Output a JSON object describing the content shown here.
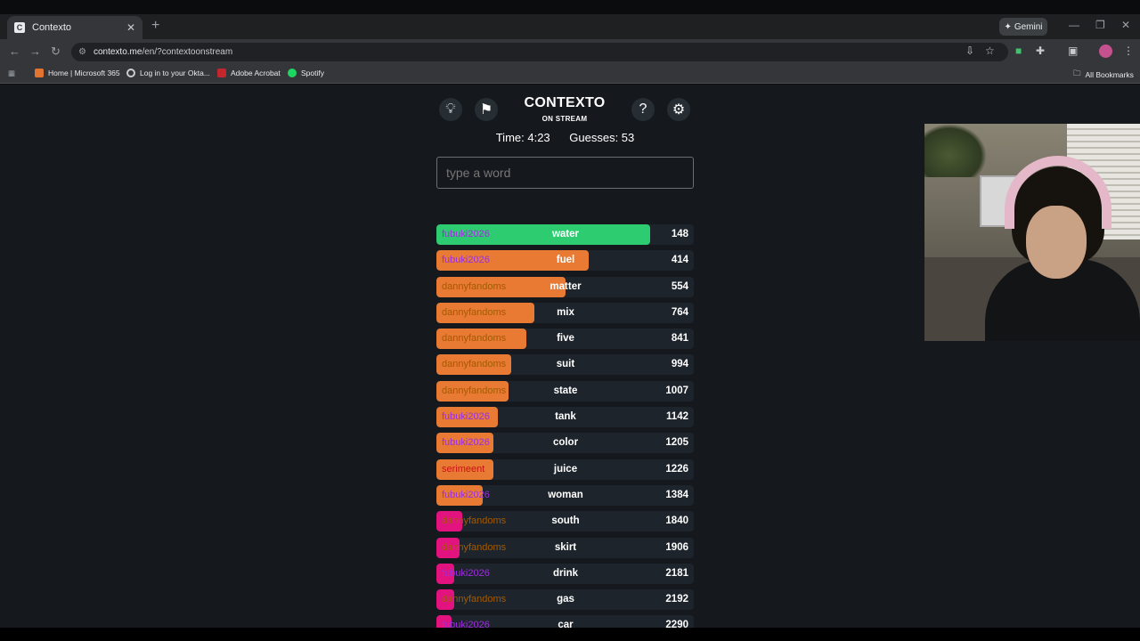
{
  "browser": {
    "tab_title": "Contexto",
    "tab_favicon": "C",
    "new_tab": "+",
    "gemini_label": "Gemini",
    "url_host": "contexto.me",
    "url_path": "/en/?contextoonstream",
    "bookmarks": [
      {
        "label": "Home | Microsoft 365",
        "color": "#e3742f"
      },
      {
        "label": "Log in to your Okta...",
        "color": "#3c4043"
      },
      {
        "label": "Adobe Acrobat",
        "color": "#c3262c"
      },
      {
        "label": "Spotify",
        "color": "#1ed760"
      }
    ],
    "all_bookmarks": "All Bookmarks"
  },
  "game": {
    "title": "CONTEXTO",
    "subtitle": "ON STREAM",
    "time_label": "Time: 4:23",
    "guesses_label": "Guesses: 53",
    "input_placeholder": "type a word",
    "colors": {
      "green": "#2ecc71",
      "orange": "#e87a33",
      "pink": "#e2127e",
      "row_bg": "#1d242b"
    },
    "guesses": [
      {
        "user": "fubuki2026",
        "word": "water",
        "distance": 148,
        "band": "green",
        "fill_pct": 83
      },
      {
        "user": "fubuki2026",
        "word": "fuel",
        "distance": 414,
        "band": "orange",
        "fill_pct": 59
      },
      {
        "user": "dannyfandoms",
        "word": "matter",
        "distance": 554,
        "band": "orange",
        "fill_pct": 50
      },
      {
        "user": "dannyfandoms",
        "word": "mix",
        "distance": 764,
        "band": "orange",
        "fill_pct": 38
      },
      {
        "user": "dannyfandoms",
        "word": "five",
        "distance": 841,
        "band": "orange",
        "fill_pct": 35
      },
      {
        "user": "dannyfandoms",
        "word": "suit",
        "distance": 994,
        "band": "orange",
        "fill_pct": 29
      },
      {
        "user": "dannyfandoms",
        "word": "state",
        "distance": 1007,
        "band": "orange",
        "fill_pct": 28
      },
      {
        "user": "fubuki2026",
        "word": "tank",
        "distance": 1142,
        "band": "orange",
        "fill_pct": 24
      },
      {
        "user": "fubuki2026",
        "word": "color",
        "distance": 1205,
        "band": "orange",
        "fill_pct": 22
      },
      {
        "user": "serimeent",
        "word": "juice",
        "distance": 1226,
        "band": "orange",
        "fill_pct": 22
      },
      {
        "user": "fubuki2026",
        "word": "woman",
        "distance": 1384,
        "band": "orange",
        "fill_pct": 18
      },
      {
        "user": "dannyfandoms",
        "word": "south",
        "distance": 1840,
        "band": "pink",
        "fill_pct": 10
      },
      {
        "user": "dannyfandoms",
        "word": "skirt",
        "distance": 1906,
        "band": "pink",
        "fill_pct": 9
      },
      {
        "user": "fubuki2026",
        "word": "drink",
        "distance": 2181,
        "band": "pink",
        "fill_pct": 7
      },
      {
        "user": "dannyfandoms",
        "word": "gas",
        "distance": 2192,
        "band": "pink",
        "fill_pct": 7
      },
      {
        "user": "fubuki2026",
        "word": "car",
        "distance": 2290,
        "band": "pink",
        "fill_pct": 6
      }
    ],
    "user_colors": {
      "fubuki2026": "#9b30d9",
      "dannyfandoms": "#a35a00",
      "serimeent": "#c81414"
    }
  }
}
